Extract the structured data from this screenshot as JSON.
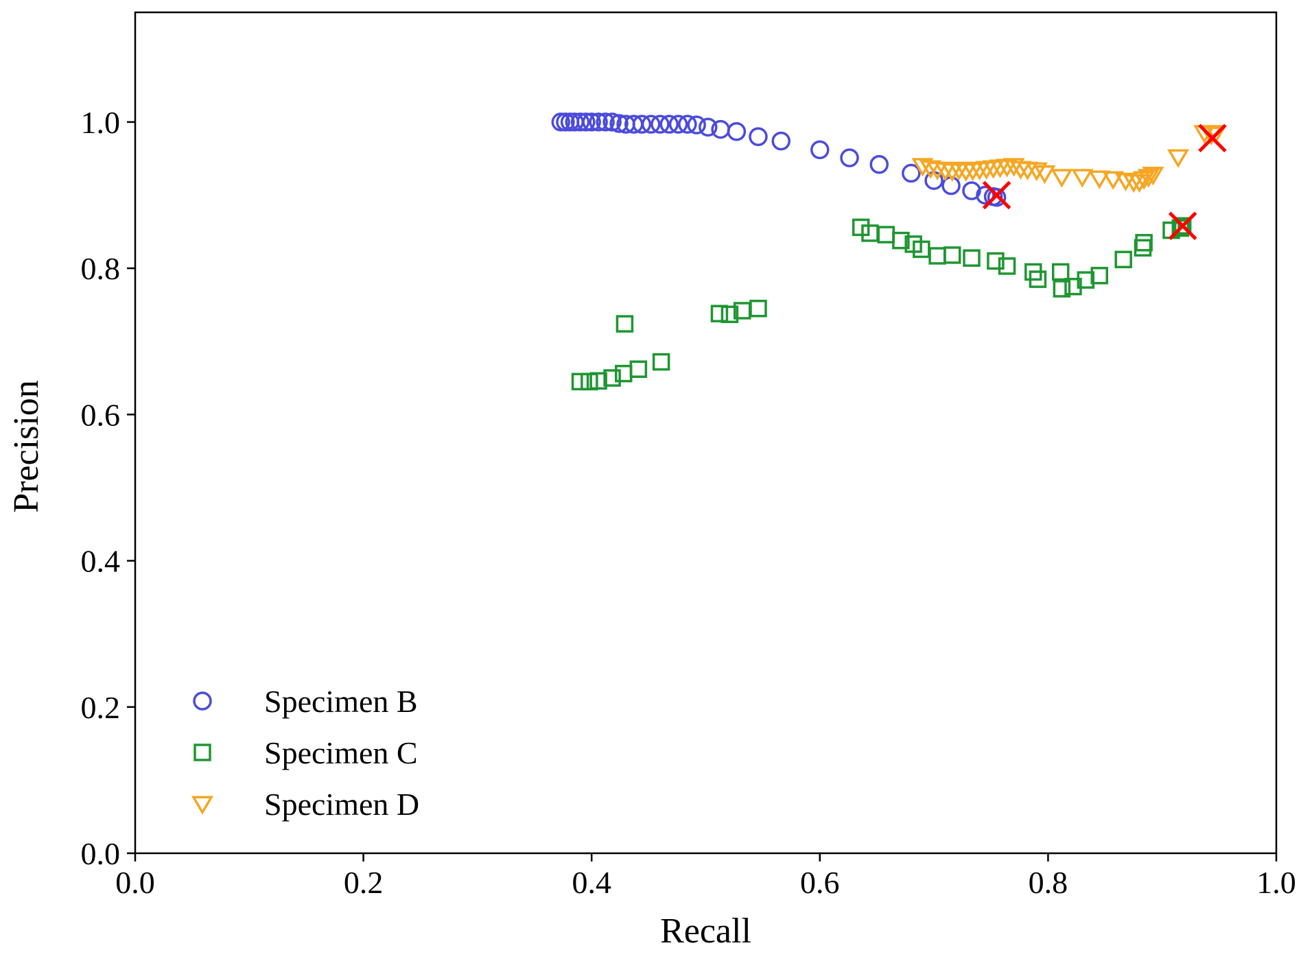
{
  "chart_data": {
    "type": "scatter",
    "title": "",
    "xlabel": "Recall",
    "ylabel": "Precision",
    "xlim": [
      0.0,
      1.0
    ],
    "ylim": [
      0.0,
      1.15
    ],
    "grid": false,
    "legend_position": "bottom-left",
    "xticks": [
      0.0,
      0.2,
      0.4,
      0.6,
      0.8,
      1.0
    ],
    "yticks": [
      0.0,
      0.2,
      0.4,
      0.6,
      0.8,
      1.0
    ],
    "xtick_labels": [
      "0.0",
      "0.2",
      "0.4",
      "0.6",
      "0.8",
      "1.0"
    ],
    "ytick_labels": [
      "0.0",
      "0.2",
      "0.4",
      "0.6",
      "0.8",
      "1.0"
    ],
    "series": [
      {
        "name": "Specimen B",
        "marker": "circle",
        "color": "#4b4bdc",
        "points": [
          [
            0.373,
            1.0
          ],
          [
            0.377,
            1.0
          ],
          [
            0.381,
            1.0
          ],
          [
            0.385,
            1.0
          ],
          [
            0.39,
            1.0
          ],
          [
            0.395,
            1.0
          ],
          [
            0.4,
            1.0
          ],
          [
            0.406,
            1.0
          ],
          [
            0.412,
            1.0
          ],
          [
            0.418,
            1.0
          ],
          [
            0.424,
            0.998
          ],
          [
            0.43,
            0.997
          ],
          [
            0.437,
            0.997
          ],
          [
            0.444,
            0.997
          ],
          [
            0.452,
            0.997
          ],
          [
            0.46,
            0.997
          ],
          [
            0.468,
            0.997
          ],
          [
            0.476,
            0.997
          ],
          [
            0.484,
            0.997
          ],
          [
            0.492,
            0.996
          ],
          [
            0.502,
            0.993
          ],
          [
            0.513,
            0.99
          ],
          [
            0.527,
            0.987
          ],
          [
            0.546,
            0.98
          ],
          [
            0.566,
            0.974
          ],
          [
            0.6,
            0.962
          ],
          [
            0.626,
            0.951
          ],
          [
            0.652,
            0.942
          ],
          [
            0.68,
            0.93
          ],
          [
            0.7,
            0.92
          ],
          [
            0.715,
            0.913
          ],
          [
            0.733,
            0.906
          ],
          [
            0.745,
            0.9
          ],
          [
            0.752,
            0.898
          ],
          [
            0.755,
            0.897
          ]
        ],
        "best": [
          0.755,
          0.9
        ]
      },
      {
        "name": "Specimen C",
        "marker": "square",
        "color": "#1e9632",
        "points": [
          [
            0.39,
            0.645
          ],
          [
            0.398,
            0.645
          ],
          [
            0.406,
            0.646
          ],
          [
            0.418,
            0.65
          ],
          [
            0.428,
            0.656
          ],
          [
            0.441,
            0.662
          ],
          [
            0.461,
            0.672
          ],
          [
            0.429,
            0.724
          ],
          [
            0.512,
            0.738
          ],
          [
            0.521,
            0.737
          ],
          [
            0.532,
            0.742
          ],
          [
            0.546,
            0.745
          ],
          [
            0.636,
            0.856
          ],
          [
            0.644,
            0.848
          ],
          [
            0.658,
            0.846
          ],
          [
            0.671,
            0.838
          ],
          [
            0.682,
            0.833
          ],
          [
            0.689,
            0.826
          ],
          [
            0.703,
            0.817
          ],
          [
            0.716,
            0.818
          ],
          [
            0.733,
            0.814
          ],
          [
            0.754,
            0.81
          ],
          [
            0.764,
            0.803
          ],
          [
            0.787,
            0.795
          ],
          [
            0.791,
            0.785
          ],
          [
            0.811,
            0.795
          ],
          [
            0.812,
            0.772
          ],
          [
            0.822,
            0.775
          ],
          [
            0.833,
            0.784
          ],
          [
            0.845,
            0.79
          ],
          [
            0.866,
            0.812
          ],
          [
            0.883,
            0.828
          ],
          [
            0.884,
            0.835
          ],
          [
            0.908,
            0.852
          ],
          [
            0.916,
            0.855
          ],
          [
            0.918,
            0.858
          ]
        ],
        "best": [
          0.918,
          0.858
        ]
      },
      {
        "name": "Specimen D",
        "marker": "triangle-down",
        "color": "#f5a623",
        "points": [
          [
            0.69,
            0.94
          ],
          [
            0.697,
            0.937
          ],
          [
            0.703,
            0.935
          ],
          [
            0.71,
            0.934
          ],
          [
            0.716,
            0.933
          ],
          [
            0.722,
            0.935
          ],
          [
            0.728,
            0.933
          ],
          [
            0.734,
            0.934
          ],
          [
            0.74,
            0.935
          ],
          [
            0.746,
            0.936
          ],
          [
            0.752,
            0.937
          ],
          [
            0.758,
            0.938
          ],
          [
            0.764,
            0.939
          ],
          [
            0.77,
            0.94
          ],
          [
            0.776,
            0.936
          ],
          [
            0.782,
            0.935
          ],
          [
            0.79,
            0.934
          ],
          [
            0.797,
            0.93
          ],
          [
            0.812,
            0.925
          ],
          [
            0.83,
            0.925
          ],
          [
            0.845,
            0.923
          ],
          [
            0.857,
            0.922
          ],
          [
            0.868,
            0.92
          ],
          [
            0.875,
            0.918
          ],
          [
            0.88,
            0.918
          ],
          [
            0.884,
            0.922
          ],
          [
            0.888,
            0.925
          ],
          [
            0.892,
            0.928
          ],
          [
            0.914,
            0.952
          ],
          [
            0.937,
            0.985
          ],
          [
            0.943,
            0.983
          ],
          [
            0.947,
            0.985
          ]
        ],
        "best": [
          0.944,
          0.978
        ]
      }
    ]
  }
}
